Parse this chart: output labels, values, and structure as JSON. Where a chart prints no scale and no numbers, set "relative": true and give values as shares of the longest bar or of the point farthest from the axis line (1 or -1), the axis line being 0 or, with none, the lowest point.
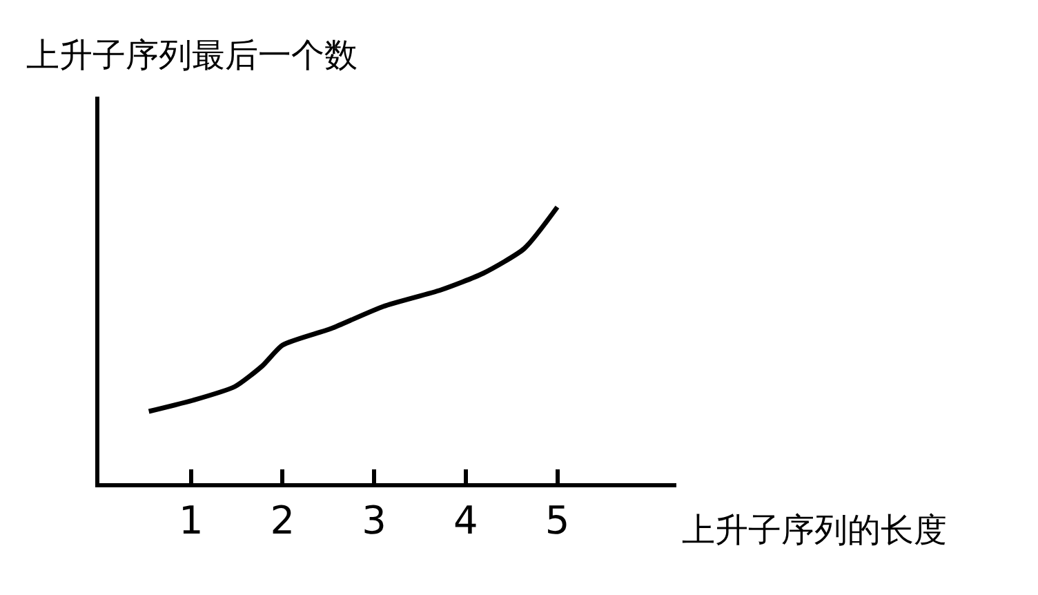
{
  "chart_data": {
    "type": "line",
    "xlabel": "上升子序列的长度",
    "ylabel": "上升子序列最后一个数",
    "relative": true,
    "xlim": [
      0,
      6.3
    ],
    "xticks": [
      1,
      2,
      3,
      4,
      5
    ],
    "series": [
      {
        "color": "#000000",
        "x": [
          0.54,
          1.02,
          1.48,
          1.78,
          2.0,
          2.53,
          3.1,
          3.73,
          4.19,
          4.64,
          5.0
        ],
        "values": [
          0.26,
          0.3,
          0.35,
          0.425,
          0.5,
          0.56,
          0.64,
          0.7,
          0.76,
          0.85,
          1.0
        ]
      }
    ],
    "marker": "none",
    "line_style": "solid"
  }
}
